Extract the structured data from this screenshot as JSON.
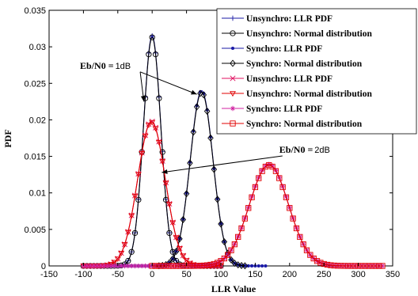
{
  "chart_data": {
    "type": "line",
    "xlabel": "LLR Value",
    "ylabel": "PDF",
    "xlim": [
      -150,
      350
    ],
    "ylim": [
      0,
      0.035
    ],
    "xticks": [
      "-150",
      "-100",
      "-50",
      "0",
      "50",
      "100",
      "150",
      "200",
      "250",
      "300",
      "350"
    ],
    "yticks": [
      "0",
      "0.005",
      "0.01",
      "0.015",
      "0.02",
      "0.025",
      "0.03",
      "0.035"
    ],
    "grid": false,
    "legend_position": "top-right",
    "legend": [
      "Unsynchro:   LLR PDF",
      "Unsynchro: Normal distribution",
      "Synchro: LLR PDF",
      "Synchro: Normal distribution",
      "Unsynchro:    LLR PDF",
      "Unsynchro: Normal distribution",
      "Synchro: LLR PDF",
      "Synchro: Normal distribution"
    ],
    "series": [
      {
        "group": "1dB",
        "mean": 0,
        "peak": 0.0315,
        "sigma": 12.7,
        "range": [
          -100,
          100
        ],
        "color": "#1a1aa6",
        "marker": "plus",
        "line": "solid"
      },
      {
        "group": "1dB",
        "mean": 0,
        "peak": 0.0313,
        "sigma": 12.7,
        "range": [
          -100,
          100
        ],
        "color": "#000000",
        "marker": "circle",
        "line": "solid"
      },
      {
        "group": "1dB",
        "mean": 72,
        "peak": 0.024,
        "sigma": 16.6,
        "range": [
          -60,
          165
        ],
        "color": "#1a1aa6",
        "marker": "dot",
        "line": "solid"
      },
      {
        "group": "1dB",
        "mean": 72,
        "peak": 0.0238,
        "sigma": 16.6,
        "range": [
          10,
          135
        ],
        "color": "#000000",
        "marker": "diamond",
        "line": "solid"
      },
      {
        "group": "2dB",
        "mean": -1,
        "peak": 0.0198,
        "sigma": 20,
        "range": [
          -100,
          100
        ],
        "color": "#e01060",
        "marker": "x",
        "line": "solid"
      },
      {
        "group": "2dB",
        "mean": -1,
        "peak": 0.0197,
        "sigma": 20,
        "range": [
          -100,
          100
        ],
        "color": "#e00000",
        "marker": "triangle",
        "line": "solid"
      },
      {
        "group": "2dB",
        "mean": 170,
        "peak": 0.0139,
        "sigma": 28.5,
        "range": [
          -100,
          335
        ],
        "color": "#d020a0",
        "marker": "star",
        "line": "solid"
      },
      {
        "group": "2dB",
        "mean": 170,
        "peak": 0.0138,
        "sigma": 28.5,
        "range": [
          0,
          335
        ],
        "color": "#e00000",
        "marker": "square",
        "line": "solid"
      }
    ],
    "annotations": [
      {
        "text_bold": "Eb/N0 =",
        "text_plain": "1dB",
        "x": -105,
        "y": 0.027,
        "arrows_to": [
          [
            -12,
            0.0225
          ],
          [
            65,
            0.0235
          ]
        ]
      },
      {
        "text_bold": "Eb/N0 =",
        "text_plain": "2dB",
        "x": 185,
        "y": 0.0155,
        "arrows_to": [
          [
            14,
            0.0128
          ]
        ]
      }
    ]
  }
}
